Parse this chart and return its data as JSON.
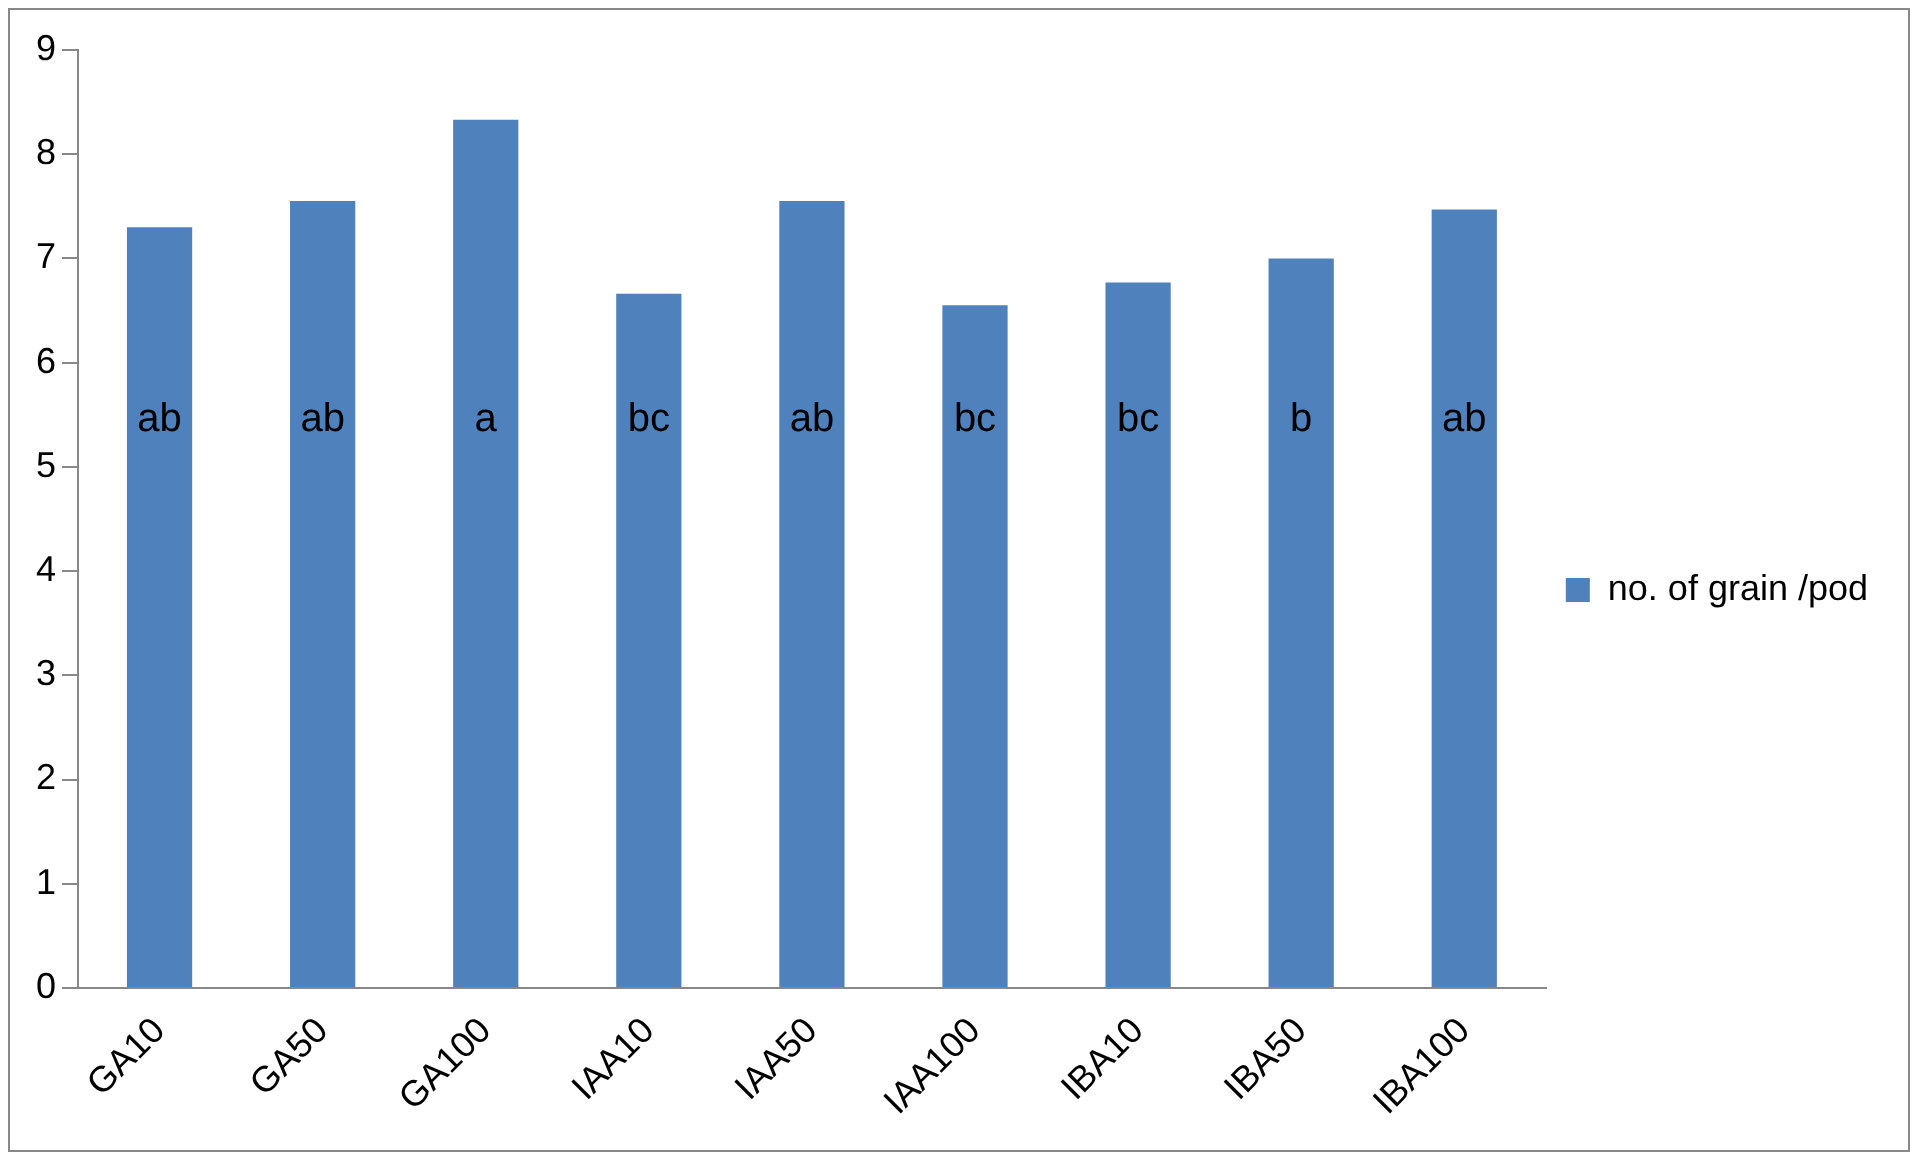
{
  "chart_data": {
    "type": "bar",
    "categories": [
      "GA10",
      "GA50",
      "GA100",
      "IAA10",
      "IAA50",
      "IAA100",
      "IBA10",
      "IBA50",
      "IBA100"
    ],
    "series": [
      {
        "name": "no. of grain /pod",
        "color": "#4f81bd",
        "values": [
          7.3,
          7.55,
          8.33,
          6.66,
          7.55,
          6.55,
          6.77,
          7.0,
          7.47
        ]
      }
    ],
    "ylim": [
      0,
      9
    ],
    "yticks": [
      0,
      1,
      2,
      3,
      4,
      5,
      6,
      7,
      8,
      9
    ],
    "grid": false,
    "legend": "right",
    "annotations": [
      {
        "text": "ab",
        "x": "GA10",
        "y": 5.45
      },
      {
        "text": "ab",
        "x": "GA50",
        "y": 5.45
      },
      {
        "text": "a",
        "x": "GA100",
        "y": 5.45
      },
      {
        "text": "bc",
        "x": "IAA10",
        "y": 5.45
      },
      {
        "text": "ab",
        "x": "IAA50",
        "y": 5.45
      },
      {
        "text": "bc",
        "x": "IAA100",
        "y": 5.45
      },
      {
        "text": "bc",
        "x": "IBA10",
        "y": 5.45
      },
      {
        "text": "b",
        "x": "IBA50",
        "y": 5.45
      },
      {
        "text": "ab",
        "x": "IBA100",
        "y": 5.45
      }
    ]
  }
}
